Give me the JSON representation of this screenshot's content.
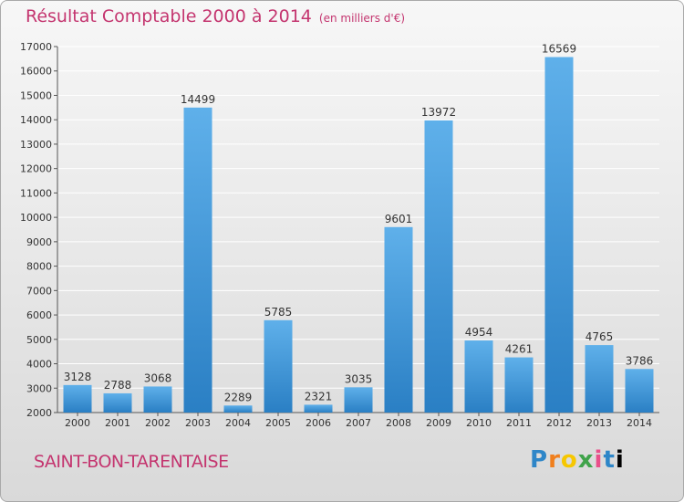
{
  "header": {
    "title": "Résultat Comptable 2000 à 2014",
    "unit": "(en milliers d'€)"
  },
  "footer": {
    "place": "SAINT-BON-TARENTAISE",
    "logo_letters": [
      "P",
      "r",
      "o",
      "x",
      "i",
      "t"
    ]
  },
  "colors": {
    "accent": "#c4356f",
    "bar": "#3f9ad9",
    "grid": "#ffffff"
  },
  "chart_data": {
    "type": "bar",
    "title": "Résultat Comptable 2000 à 2014",
    "xlabel": "",
    "ylabel": "",
    "categories": [
      "2000",
      "2001",
      "2002",
      "2003",
      "2004",
      "2005",
      "2006",
      "2007",
      "2008",
      "2009",
      "2010",
      "2011",
      "2012",
      "2013",
      "2014"
    ],
    "values": [
      3128,
      2788,
      3068,
      14499,
      2289,
      5785,
      2321,
      3035,
      9601,
      13972,
      4954,
      4261,
      16569,
      4765,
      3786
    ],
    "ylim": [
      2000,
      17000
    ],
    "yticks": [
      2000,
      3000,
      4000,
      5000,
      6000,
      7000,
      8000,
      9000,
      10000,
      11000,
      12000,
      13000,
      14000,
      15000,
      16000,
      17000
    ],
    "grid": true
  }
}
